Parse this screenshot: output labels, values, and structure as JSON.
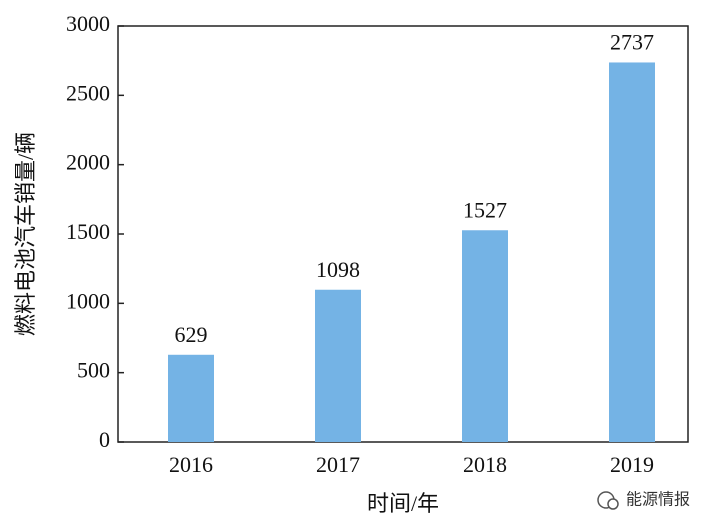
{
  "chart_data": {
    "type": "bar",
    "ylabel": "燃料电池汽车销量/辆",
    "xlabel": "时间/年",
    "categories": [
      "2016",
      "2017",
      "2018",
      "2019"
    ],
    "values": [
      629,
      1098,
      1527,
      2737
    ],
    "color": "#74b3e5",
    "ylim": [
      0,
      3000
    ],
    "yticks": [
      0,
      500,
      1000,
      1500,
      2000,
      2500,
      3000
    ]
  },
  "watermark": "能源情报"
}
